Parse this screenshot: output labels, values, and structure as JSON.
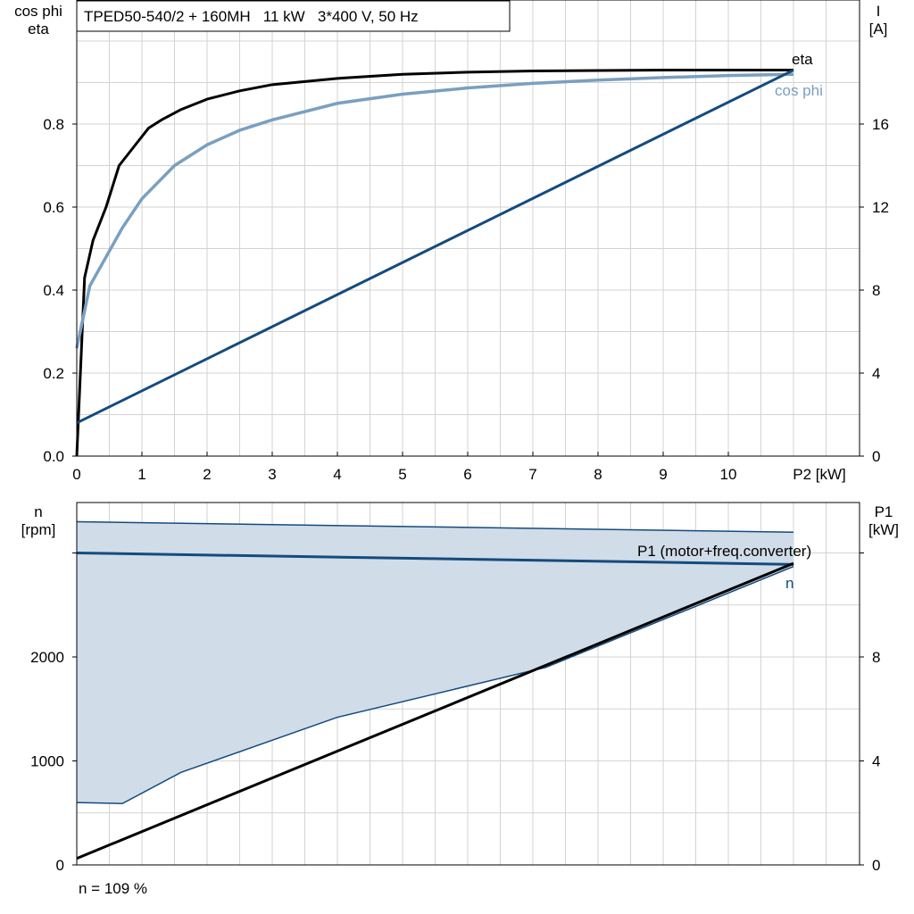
{
  "title": "TPED50-540/2 + 160MH   11 kW   3*400 V, 50 Hz",
  "footnote": "n = 109 %",
  "colors": {
    "eta": "#000000",
    "cos_phi": "#7a9fc0",
    "current": "#144b7e",
    "speed": "#144b7e",
    "speed_band_fill": "#d0dce8",
    "p1": "#000000"
  },
  "chart_data": [
    {
      "type": "line",
      "xlabel": "P2 [kW]",
      "ylabel_left": "cos phi\neta",
      "ylabel_right": "I\n[A]",
      "xlim": [
        0,
        11
      ],
      "ylim_left": [
        0,
        1
      ],
      "ylim_right": [
        0,
        20
      ],
      "x_ticks": [
        "0",
        "1",
        "2",
        "3",
        "4",
        "5",
        "6",
        "7",
        "8",
        "9",
        "10"
      ],
      "y_left_ticks": [
        "0.0",
        "0.2",
        "0.4",
        "0.6",
        "0.8"
      ],
      "y_right_ticks": [
        "0",
        "4",
        "8",
        "12",
        "16"
      ],
      "grid": true,
      "series": [
        {
          "name": "eta",
          "axis": "left",
          "x": [
            0,
            0.12,
            0.25,
            0.45,
            0.65,
            0.9,
            1.1,
            1.3,
            1.6,
            2,
            2.5,
            3,
            4,
            5,
            6,
            7,
            8,
            9,
            10,
            11
          ],
          "y": [
            0,
            0.43,
            0.52,
            0.6,
            0.7,
            0.75,
            0.79,
            0.81,
            0.835,
            0.86,
            0.88,
            0.895,
            0.91,
            0.92,
            0.925,
            0.928,
            0.929,
            0.93,
            0.93,
            0.93
          ]
        },
        {
          "name": "cos phi",
          "axis": "left",
          "x": [
            0,
            0.2,
            0.45,
            0.7,
            1,
            1.5,
            2,
            2.5,
            3,
            4,
            5,
            6,
            7,
            8,
            9,
            10,
            11
          ],
          "y": [
            0.26,
            0.41,
            0.48,
            0.55,
            0.62,
            0.7,
            0.75,
            0.785,
            0.81,
            0.85,
            0.872,
            0.887,
            0.898,
            0.906,
            0.912,
            0.917,
            0.92
          ]
        },
        {
          "name": "I",
          "axis": "right",
          "x": [
            0,
            11
          ],
          "y": [
            1.6,
            18.6
          ]
        }
      ]
    },
    {
      "type": "line",
      "xlim": [
        0,
        11
      ],
      "ylabel_left": "n\n[rpm]",
      "ylabel_right": "P1\n[kW]",
      "ylim_left": [
        0,
        3500
      ],
      "ylim_right": [
        0,
        14
      ],
      "y_left_ticks": [
        "0",
        "1000",
        "2000"
      ],
      "y_right_ticks": [
        "0",
        "4",
        "8"
      ],
      "grid": true,
      "series": [
        {
          "name": "n",
          "axis": "left",
          "x": [
            0,
            11
          ],
          "y": [
            3000,
            2890
          ]
        },
        {
          "name": "P1 (motor+freq.converter)",
          "axis": "right",
          "x": [
            0,
            11
          ],
          "y": [
            0.25,
            11.6
          ]
        }
      ],
      "band": {
        "axis": "left",
        "upper": {
          "x": [
            0,
            11
          ],
          "y": [
            3300,
            3200
          ]
        },
        "lower": {
          "x": [
            0,
            0.7,
            1.6,
            4,
            7.2,
            11
          ],
          "y": [
            600,
            590,
            890,
            1420,
            1900,
            2870
          ]
        }
      }
    }
  ]
}
